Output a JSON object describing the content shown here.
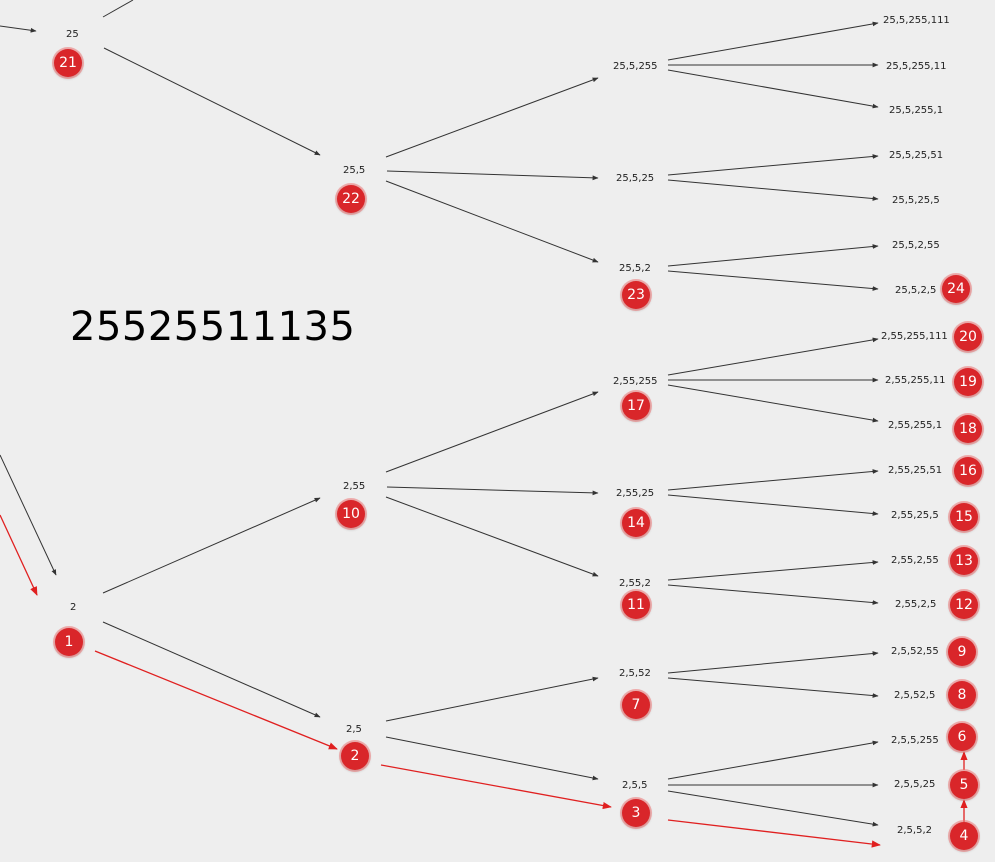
{
  "title_number": "25525511135",
  "colors": {
    "background": "#eeeeee",
    "edge": "#333333",
    "path": "#e02020",
    "badge": "#d9262a"
  },
  "nodes": {
    "n25": "25",
    "n25_5": "25,5",
    "n25_5_255": "25,5,255",
    "n25_5_255_111": "25,5,255,111",
    "n25_5_255_11": "25,5,255,11",
    "n25_5_255_1": "25,5,255,1",
    "n25_5_25": "25,5,25",
    "n25_5_25_51": "25,5,25,51",
    "n25_5_25_5": "25,5,25,5",
    "n25_5_2": "25,5,2",
    "n25_5_2_55": "25,5,2,55",
    "n25_5_2_5": "25,5,2,5",
    "n2": "2",
    "n2_55": "2,55",
    "n2_55_255": "2,55,255",
    "n2_55_255_111": "2,55,255,111",
    "n2_55_255_11": "2,55,255,11",
    "n2_55_255_1": "2,55,255,1",
    "n2_55_25": "2,55,25",
    "n2_55_25_51": "2,55,25,51",
    "n2_55_25_5": "2,55,25,5",
    "n2_55_2": "2,55,2",
    "n2_55_2_55": "2,55,2,55",
    "n2_55_2_5": "2,55,2,5",
    "n2_5": "2,5",
    "n2_5_52": "2,5,52",
    "n2_5_52_55": "2,5,52,55",
    "n2_5_52_5": "2,5,52,5",
    "n2_5_5": "2,5,5",
    "n2_5_5_255": "2,5,5,255",
    "n2_5_5_25": "2,5,5,25",
    "n2_5_5_2": "2,5,5,2"
  },
  "badges": {
    "b1": "1",
    "b2": "2",
    "b3": "3",
    "b4": "4",
    "b5": "5",
    "b6": "6",
    "b7": "7",
    "b8": "8",
    "b9": "9",
    "b10": "10",
    "b11": "11",
    "b12": "12",
    "b13": "13",
    "b14": "14",
    "b15": "15",
    "b16": "16",
    "b17": "17",
    "b18": "18",
    "b19": "19",
    "b20": "20",
    "b21": "21",
    "b22": "22",
    "b23": "23",
    "b24": "24"
  }
}
